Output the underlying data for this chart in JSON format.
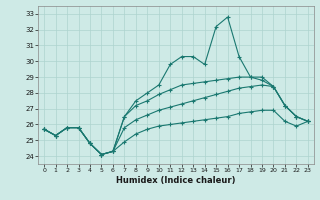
{
  "xlabel": "Humidex (Indice chaleur)",
  "bg_color": "#ceeae6",
  "grid_color": "#aed4cf",
  "line_color": "#1a7870",
  "xlim": [
    -0.5,
    23.5
  ],
  "ylim": [
    23.5,
    33.5
  ],
  "yticks": [
    24,
    25,
    26,
    27,
    28,
    29,
    30,
    31,
    32,
    33
  ],
  "xticks": [
    0,
    1,
    2,
    3,
    4,
    5,
    6,
    7,
    8,
    9,
    10,
    11,
    12,
    13,
    14,
    15,
    16,
    17,
    18,
    19,
    20,
    21,
    22,
    23
  ],
  "series": [
    [
      25.7,
      25.3,
      25.8,
      25.8,
      24.8,
      24.1,
      24.3,
      26.5,
      27.5,
      28.0,
      28.5,
      29.8,
      30.3,
      30.3,
      29.8,
      32.2,
      32.8,
      30.3,
      29.0,
      29.0,
      28.4,
      27.2,
      26.5,
      26.2
    ],
    [
      25.7,
      25.3,
      25.8,
      25.8,
      24.8,
      24.1,
      24.3,
      26.5,
      27.2,
      27.5,
      27.9,
      28.2,
      28.5,
      28.6,
      28.7,
      28.8,
      28.9,
      29.0,
      29.0,
      28.8,
      28.4,
      27.2,
      26.5,
      26.2
    ],
    [
      25.7,
      25.3,
      25.8,
      25.8,
      24.8,
      24.1,
      24.3,
      25.8,
      26.3,
      26.6,
      26.9,
      27.1,
      27.3,
      27.5,
      27.7,
      27.9,
      28.1,
      28.3,
      28.4,
      28.5,
      28.4,
      27.2,
      26.5,
      26.2
    ],
    [
      25.7,
      25.3,
      25.8,
      25.8,
      24.8,
      24.1,
      24.3,
      24.9,
      25.4,
      25.7,
      25.9,
      26.0,
      26.1,
      26.2,
      26.3,
      26.4,
      26.5,
      26.7,
      26.8,
      26.9,
      26.9,
      26.2,
      25.9,
      26.2
    ]
  ]
}
